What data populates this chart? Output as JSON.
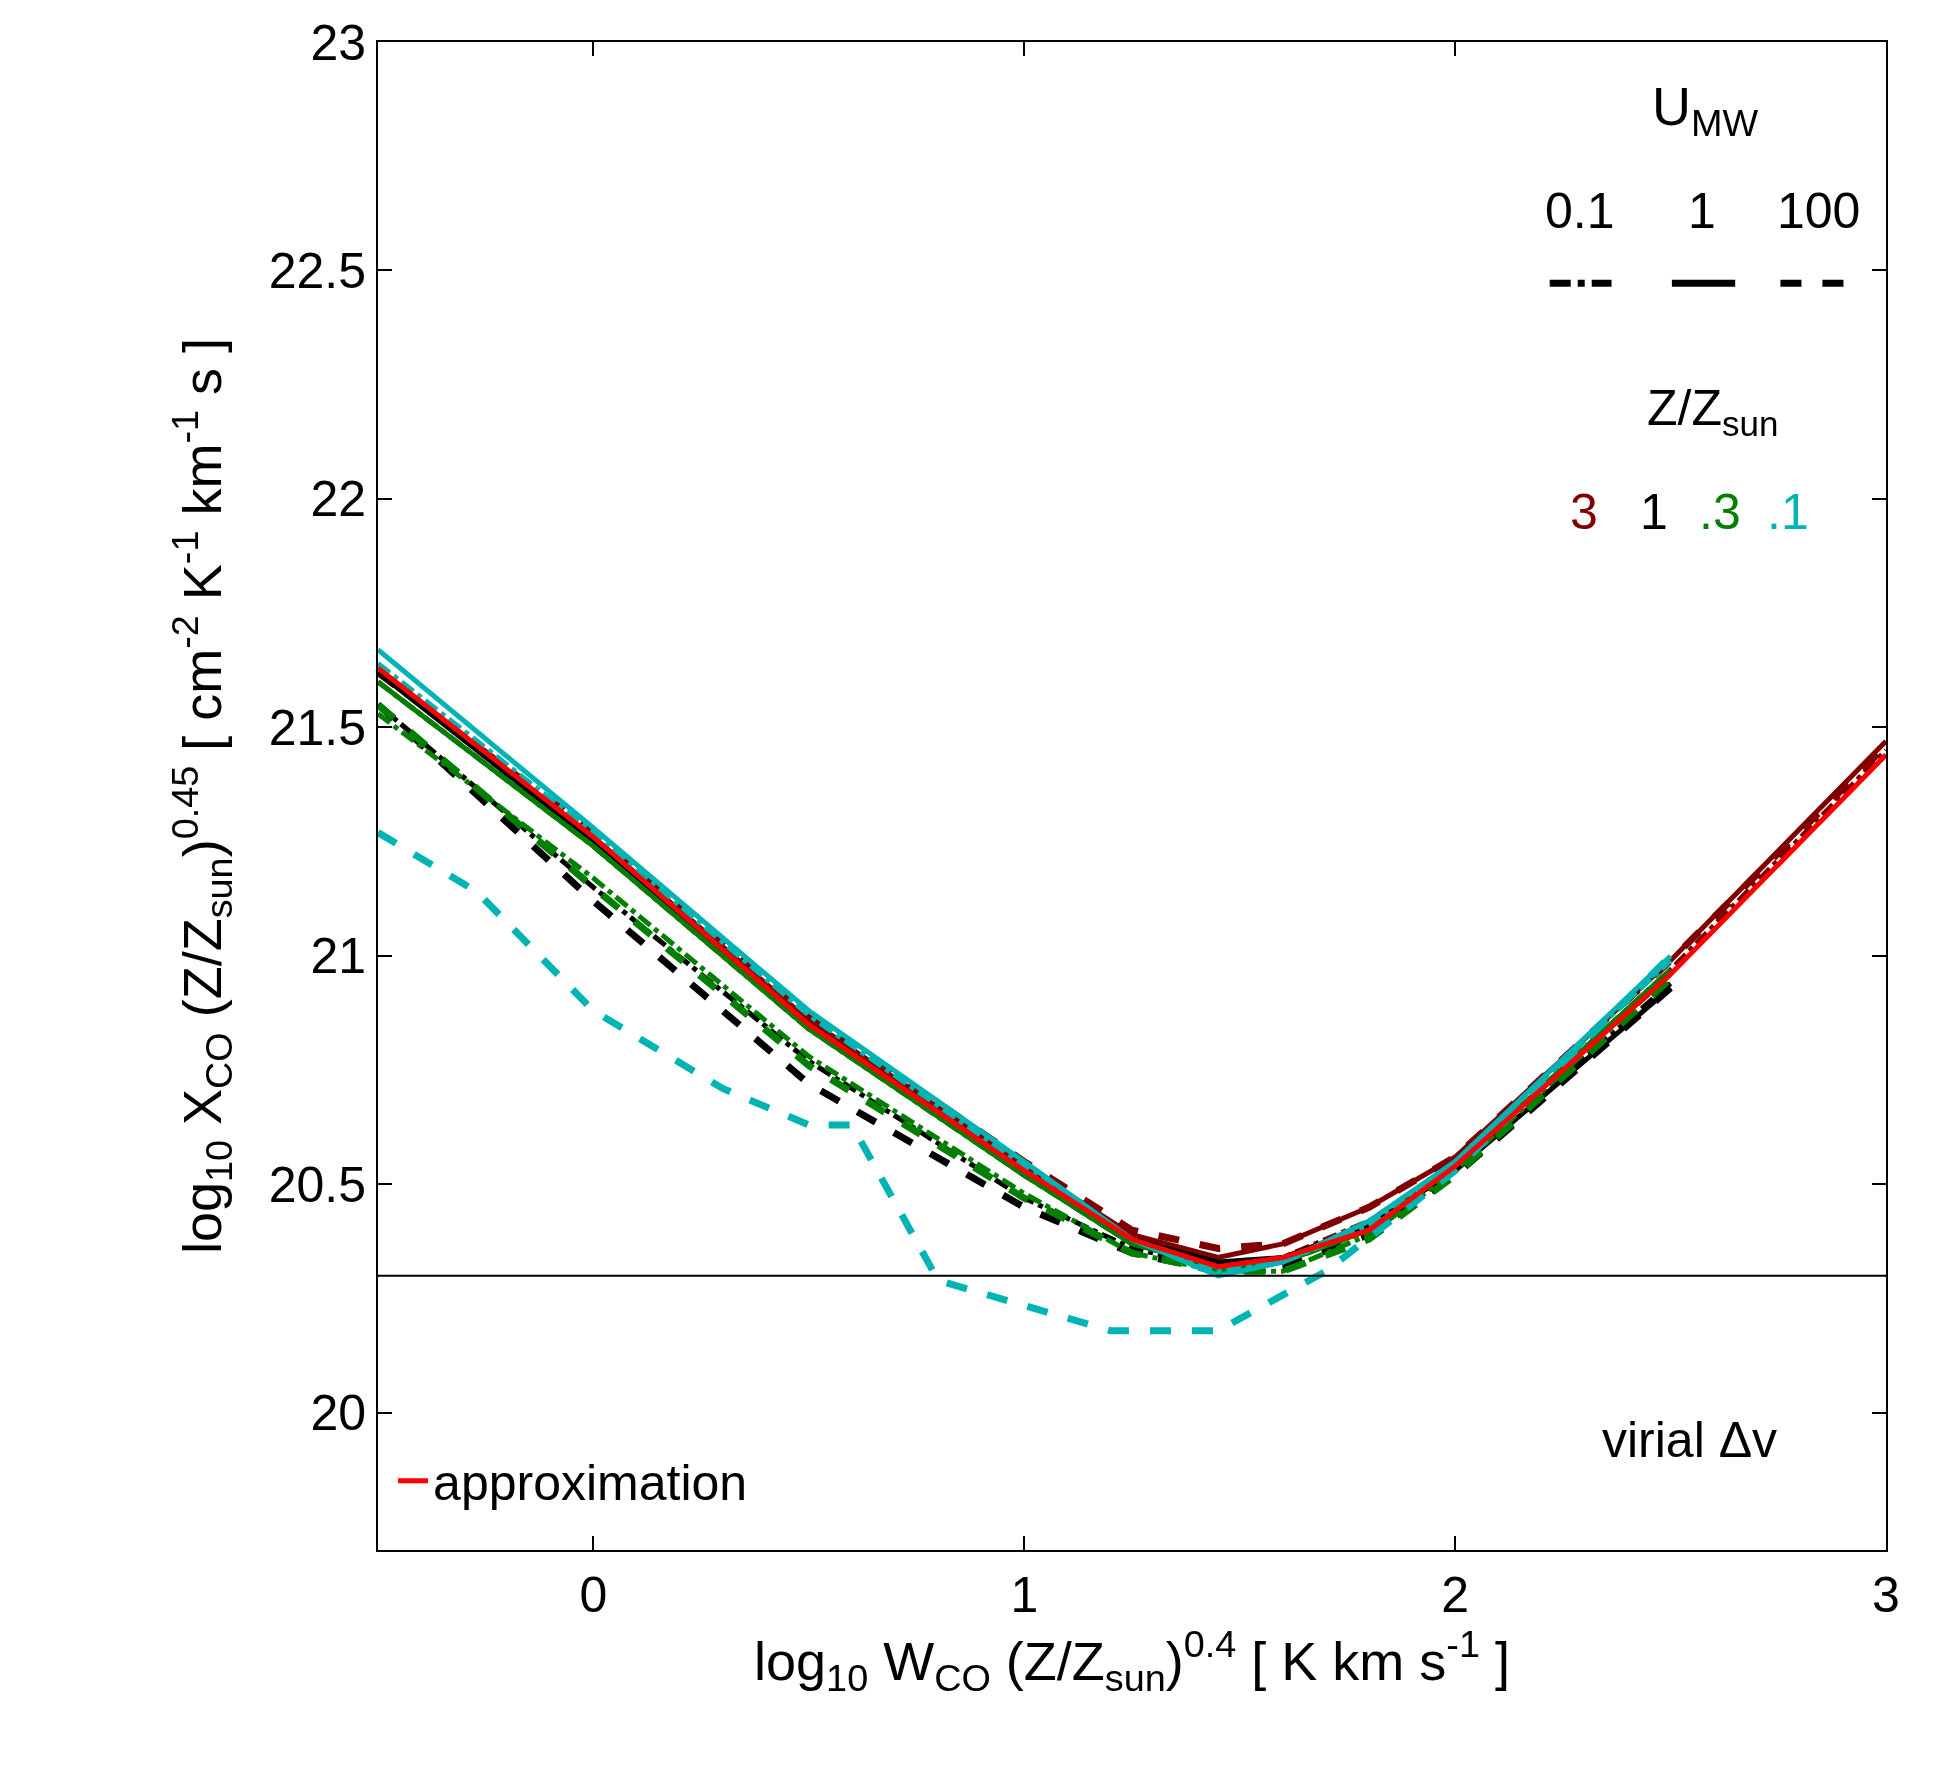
{
  "chart_data": {
    "type": "line",
    "xlabel": "log$_{10}$ W$_{CO}$ (Z/Z$_{sun}$)$^{0.4}$ [ K km s$^{-1}$ ]",
    "ylabel": "log$_{10}$ X$_{CO}$ (Z/Z$_{sun}$)$^{0.45}$ [ cm$^{-2}$ K$^{-1}$ km$^{-1}$ s ]",
    "x": [
      -0.5,
      0,
      0.5,
      1,
      1.25,
      1.45,
      1.6,
      1.8,
      2,
      2.5,
      3
    ],
    "xlim": [
      -0.5,
      3
    ],
    "xticks": [
      0,
      1,
      2,
      3
    ],
    "ylim": [
      19.7,
      23
    ],
    "yticks": [
      20,
      20.5,
      21,
      21.5,
      22,
      22.5,
      23
    ],
    "grid": false,
    "legend": "bottom left",
    "series": [
      {
        "color": "#800000",
        "line_style": "dashdot",
        "values": [
          21.6,
          21.24,
          20.84,
          20.52,
          20.37,
          20.32,
          20.34,
          20.42,
          20.54,
          20.97,
          21.45
        ]
      },
      {
        "color": "#800000",
        "line_style": "solid",
        "values": [
          21.62,
          21.26,
          20.86,
          20.54,
          20.39,
          20.34,
          20.37,
          20.45,
          20.56,
          20.99,
          21.47
        ]
      },
      {
        "color": "#800000",
        "line_style": "dashed",
        "values": [
          21.62,
          21.27,
          20.87,
          20.55,
          20.4,
          20.36,
          20.37,
          20.45,
          20.56,
          20.99,
          21.46
        ]
      },
      {
        "color": "#000000",
        "line_style": "dashdot",
        "values": [
          21.55,
          21.15,
          20.77,
          20.47,
          20.36,
          20.32,
          20.33,
          20.4,
          20.53,
          20.94,
          null
        ]
      },
      {
        "color": "#000000",
        "line_style": "solid",
        "values": [
          21.62,
          21.25,
          20.85,
          20.52,
          20.38,
          20.33,
          20.34,
          20.41,
          20.53,
          20.93,
          null
        ]
      },
      {
        "color": "#000000",
        "line_style": "dashed",
        "values": [
          21.55,
          21.12,
          20.72,
          20.45,
          20.35,
          20.31,
          20.32,
          20.39,
          20.52,
          20.93,
          null
        ]
      },
      {
        "color": "#008000",
        "line_style": "dashdot",
        "values": [
          21.53,
          21.17,
          20.78,
          20.48,
          20.35,
          20.31,
          20.31,
          20.39,
          20.53,
          20.96,
          null
        ]
      },
      {
        "color": "#008000",
        "line_style": "solid",
        "values": [
          21.6,
          21.24,
          20.84,
          20.52,
          20.37,
          20.32,
          20.33,
          20.4,
          20.54,
          20.97,
          null
        ]
      },
      {
        "color": "#008000",
        "line_style": "dashed",
        "values": [
          21.55,
          21.15,
          20.76,
          20.47,
          20.35,
          20.31,
          20.31,
          20.38,
          20.52,
          20.95,
          null
        ]
      },
      {
        "color": "#00b4b4",
        "line_style": "dashdot",
        "values": [
          21.64,
          21.27,
          20.87,
          20.54,
          20.38,
          20.31,
          20.33,
          20.41,
          20.55,
          20.99,
          null
        ]
      },
      {
        "color": "#00b4b4",
        "line_style": "solid",
        "values": [
          21.67,
          21.28,
          20.88,
          20.55,
          20.38,
          20.3,
          20.33,
          20.42,
          20.55,
          21.0,
          null
        ]
      },
      {
        "color": "#00b4b4",
        "line_style": "dashed",
        "x": [
          -0.5,
          -0.27,
          0,
          0.3,
          0.5,
          0.6,
          0.8,
          1.2,
          1.45,
          1.7,
          2,
          2.5
        ],
        "values": [
          21.27,
          21.14,
          20.88,
          20.71,
          20.63,
          20.63,
          20.29,
          20.18,
          20.18,
          20.31,
          20.53,
          21.0
        ]
      },
      {
        "name": "approximation",
        "color": "#ff0000",
        "line_style": "solid",
        "values": [
          21.63,
          21.26,
          20.85,
          20.53,
          20.38,
          20.32,
          20.34,
          20.4,
          20.54,
          20.96,
          21.44
        ]
      }
    ],
    "ref_lines": [
      {
        "axis": "y",
        "value": 20.3,
        "color": "#000000"
      }
    ],
    "annotations": [
      "U$_{MW}$",
      "0.1",
      "1",
      "100",
      "Z/Z$_{sun}$",
      "3",
      "1",
      ".3",
      ".1",
      "virial Δv"
    ]
  }
}
